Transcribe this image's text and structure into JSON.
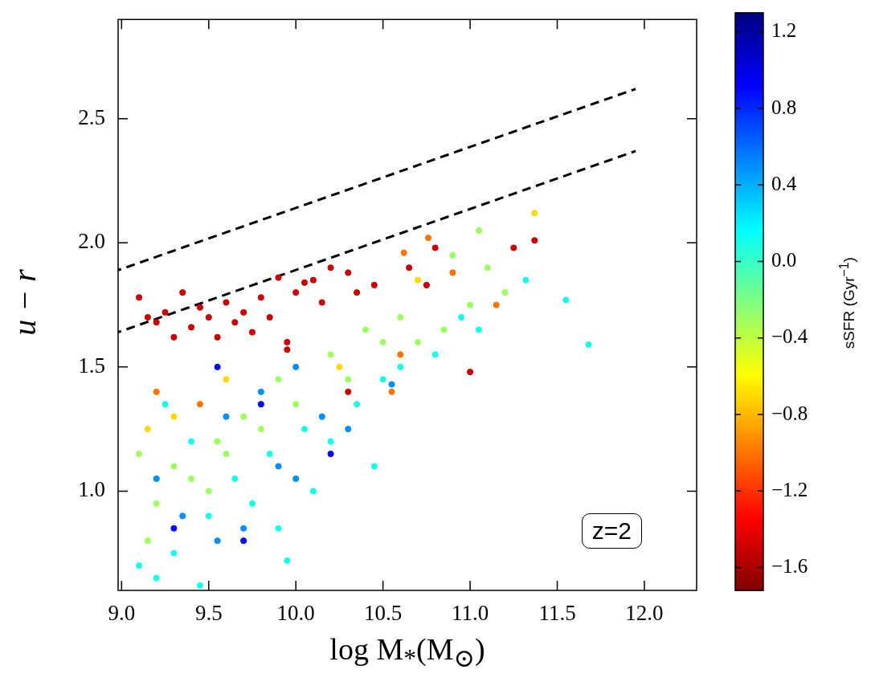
{
  "chart_data": {
    "type": "scatter",
    "xlabel": "log  M$_{*}$(M$_{⊙}$)",
    "ylabel": "u − r",
    "clabel": "sSFR (Gyr$^{−1}$)",
    "xlim": [
      8.98,
      12.3
    ],
    "ylim": [
      0.6,
      2.9
    ],
    "xticks": [
      {
        "value": 9,
        "label": "9.0"
      },
      {
        "value": 9.5,
        "label": "9.5"
      },
      {
        "value": 10,
        "label": "10.0"
      },
      {
        "value": 10.5,
        "label": "10.5"
      },
      {
        "value": 11,
        "label": "11.0"
      },
      {
        "value": 11.5,
        "label": "11.5"
      },
      {
        "value": 12,
        "label": "12.0"
      }
    ],
    "yticks": [
      {
        "value": 1,
        "label": "1.0"
      },
      {
        "value": 1.5,
        "label": "1.5"
      },
      {
        "value": 2,
        "label": "2.0"
      },
      {
        "value": 2.5,
        "label": "2.5"
      }
    ],
    "clim": [
      -1.72,
      1.3
    ],
    "cticks": [
      {
        "value": -1.6,
        "label": "−1.6"
      },
      {
        "value": -1.2,
        "label": "−1.2"
      },
      {
        "value": -0.8,
        "label": "−0.8"
      },
      {
        "value": -0.4,
        "label": "−0.4"
      },
      {
        "value": 0,
        "label": "0.0"
      },
      {
        "value": 0.4,
        "label": "0.4"
      },
      {
        "value": 0.8,
        "label": "0.8"
      },
      {
        "value": 1.2,
        "label": "1.2"
      }
    ],
    "grid": false,
    "legend": false,
    "annotations": [
      "z=2"
    ],
    "series": [
      {
        "marker": "circle",
        "colors": [
          "#ca0000",
          "#ca0000",
          "#ca0000",
          "#ca0000",
          "#ca0000",
          "#ca0000",
          "#ca0000",
          "#ca0000",
          "#ca0000",
          "#ca0000",
          "#ca0000",
          "#ca0000",
          "#ca0000",
          "#ca0000",
          "#ca0000",
          "#ca0000",
          "#ca0000",
          "#ca0000",
          "#ca0000",
          "#ca0000",
          "#ca0000",
          "#ca0000",
          "#ca0000",
          "#ca0000",
          "#ca0000",
          "#ca0000",
          "#ca0000",
          "#ca0000",
          "#ca0000",
          "#ca0000",
          "#ca0000",
          "#ca0000",
          "#ca0000",
          "#ca0000",
          "#ff7400",
          "#ff7400",
          "#ff7400",
          "#ff7400",
          "#ff7400",
          "#ff7400",
          "#ff7400",
          "#ff7400",
          "#ffd900",
          "#ffd900",
          "#ffd900",
          "#ffd900",
          "#ffd900",
          "#ffd900",
          "#9eff61",
          "#9eff61",
          "#9eff61",
          "#9eff61",
          "#9eff61",
          "#9eff61",
          "#9eff61",
          "#9eff61",
          "#9eff61",
          "#9eff61",
          "#9eff61",
          "#9eff61",
          "#9eff61",
          "#9eff61",
          "#9eff61",
          "#9eff61",
          "#9eff61",
          "#9eff61",
          "#9eff61",
          "#9eff61",
          "#9eff61",
          "#9eff61",
          "#9eff61",
          "#9eff61",
          "#17ffe8",
          "#17ffe8",
          "#17ffe8",
          "#17ffe8",
          "#17ffe8",
          "#17ffe8",
          "#17ffe8",
          "#17ffe8",
          "#17ffe8",
          "#17ffe8",
          "#17ffe8",
          "#17ffe8",
          "#17ffe8",
          "#17ffe8",
          "#17ffe8",
          "#17ffe8",
          "#17ffe8",
          "#17ffe8",
          "#17ffe8",
          "#17ffe8",
          "#17ffe8",
          "#17ffe8",
          "#17ffe8",
          "#17ffe8",
          "#17ffe8",
          "#008fff",
          "#008fff",
          "#008fff",
          "#008fff",
          "#008fff",
          "#008fff",
          "#008fff",
          "#008fff",
          "#008fff",
          "#008fff",
          "#008fff",
          "#008fff",
          "#0008ff",
          "#0008ff",
          "#0008ff",
          "#0008ff",
          "#0008ff"
        ],
        "x": [
          9.1,
          9.15,
          9.2,
          9.25,
          9.3,
          9.35,
          9.4,
          9.45,
          9.5,
          9.55,
          9.6,
          9.65,
          9.7,
          9.75,
          9.8,
          9.85,
          9.9,
          9.95,
          10.0,
          10.05,
          10.1,
          10.15,
          10.2,
          10.3,
          10.35,
          10.45,
          10.65,
          10.75,
          10.8,
          11.0,
          11.25,
          11.37,
          10.3,
          9.95,
          10.76,
          10.62,
          10.55,
          10.6,
          11.15,
          9.45,
          9.2,
          10.9,
          11.37,
          10.7,
          9.3,
          9.15,
          10.25,
          9.6,
          10.6,
          10.9,
          11.05,
          11.1,
          10.5,
          10.3,
          10.0,
          9.8,
          9.6,
          9.4,
          9.2,
          9.1,
          10.7,
          11.2,
          10.4,
          9.7,
          9.3,
          9.5,
          9.15,
          11.0,
          10.85,
          10.2,
          9.9,
          9.55,
          11.55,
          11.68,
          11.32,
          10.95,
          10.45,
          10.2,
          10.1,
          9.9,
          9.95,
          9.75,
          9.5,
          9.3,
          9.1,
          9.2,
          9.45,
          10.6,
          10.35,
          10.05,
          9.85,
          9.65,
          9.4,
          9.25,
          10.8,
          10.5,
          11.05,
          10.0,
          9.8,
          9.6,
          9.9,
          10.15,
          9.7,
          9.55,
          9.35,
          10.3,
          10.55,
          9.2,
          10.0,
          9.7,
          9.8,
          9.55,
          10.2,
          9.3
        ],
        "values": [
          1.78,
          1.7,
          1.68,
          1.72,
          1.62,
          1.8,
          1.66,
          1.74,
          1.7,
          1.62,
          1.76,
          1.68,
          1.72,
          1.64,
          1.78,
          1.7,
          1.86,
          1.6,
          1.8,
          1.84,
          1.85,
          1.76,
          1.9,
          1.88,
          1.8,
          1.83,
          1.9,
          1.83,
          1.98,
          1.48,
          1.98,
          2.01,
          1.4,
          1.57,
          2.02,
          1.96,
          1.4,
          1.55,
          1.75,
          1.35,
          1.4,
          1.88,
          2.12,
          1.85,
          1.3,
          1.25,
          1.5,
          1.45,
          1.7,
          1.95,
          2.05,
          1.9,
          1.6,
          1.45,
          1.35,
          1.25,
          1.15,
          1.05,
          0.95,
          1.15,
          1.6,
          1.8,
          1.65,
          1.3,
          1.1,
          1.0,
          0.8,
          1.75,
          1.65,
          1.55,
          1.45,
          1.2,
          1.77,
          1.59,
          1.85,
          1.7,
          1.1,
          1.2,
          1.0,
          0.85,
          0.72,
          0.95,
          0.9,
          0.75,
          0.7,
          0.65,
          0.62,
          1.5,
          1.35,
          1.25,
          1.15,
          1.05,
          1.2,
          1.35,
          1.55,
          1.45,
          1.65,
          1.5,
          1.4,
          1.3,
          1.1,
          1.3,
          0.85,
          0.8,
          0.9,
          1.25,
          1.43,
          1.05,
          1.05,
          0.8,
          1.35,
          1.5,
          1.15,
          0.85
        ],
        "cvalues": [
          -1.5,
          -1.5,
          -1.5,
          -1.5,
          -1.5,
          -1.5,
          -1.5,
          -1.5,
          -1.5,
          -1.5,
          -1.5,
          -1.5,
          -1.5,
          -1.5,
          -1.5,
          -1.5,
          -1.5,
          -1.5,
          -1.5,
          -1.5,
          -1.5,
          -1.5,
          -1.5,
          -1.5,
          -1.5,
          -1.5,
          -1.5,
          -1.5,
          -1.5,
          -1.5,
          -1.5,
          -1.5,
          -1.5,
          -1.5,
          -1.0,
          -1.0,
          -1.0,
          -1.0,
          -1.0,
          -1.0,
          -1.0,
          -1.0,
          -0.7,
          -0.7,
          -0.7,
          -0.7,
          -0.7,
          -0.7,
          -0.3,
          -0.3,
          -0.3,
          -0.3,
          -0.3,
          -0.3,
          -0.3,
          -0.3,
          -0.3,
          -0.3,
          -0.3,
          -0.3,
          -0.3,
          -0.3,
          -0.3,
          -0.3,
          -0.3,
          -0.3,
          -0.3,
          -0.3,
          -0.3,
          -0.3,
          -0.3,
          -0.3,
          0.1,
          0.1,
          0.1,
          0.1,
          0.1,
          0.1,
          0.1,
          0.1,
          0.1,
          0.1,
          0.1,
          0.1,
          0.1,
          0.1,
          0.1,
          0.1,
          0.1,
          0.1,
          0.1,
          0.1,
          0.1,
          0.1,
          0.1,
          0.1,
          0.1,
          0.5,
          0.5,
          0.5,
          0.5,
          0.5,
          0.5,
          0.5,
          0.5,
          0.5,
          0.5,
          0.5,
          0.5,
          0.9,
          0.9,
          0.9,
          0.9,
          0.9
        ]
      },
      {
        "type": "line",
        "color": "#000000",
        "line_style": "dashed",
        "marker": "none",
        "x": [
          8.98,
          11.95
        ],
        "values": [
          1.89,
          2.62
        ]
      },
      {
        "type": "line",
        "color": "#000000",
        "line_style": "dashed",
        "marker": "none",
        "x": [
          8.98,
          11.95
        ],
        "values": [
          1.64,
          2.37
        ]
      }
    ]
  }
}
